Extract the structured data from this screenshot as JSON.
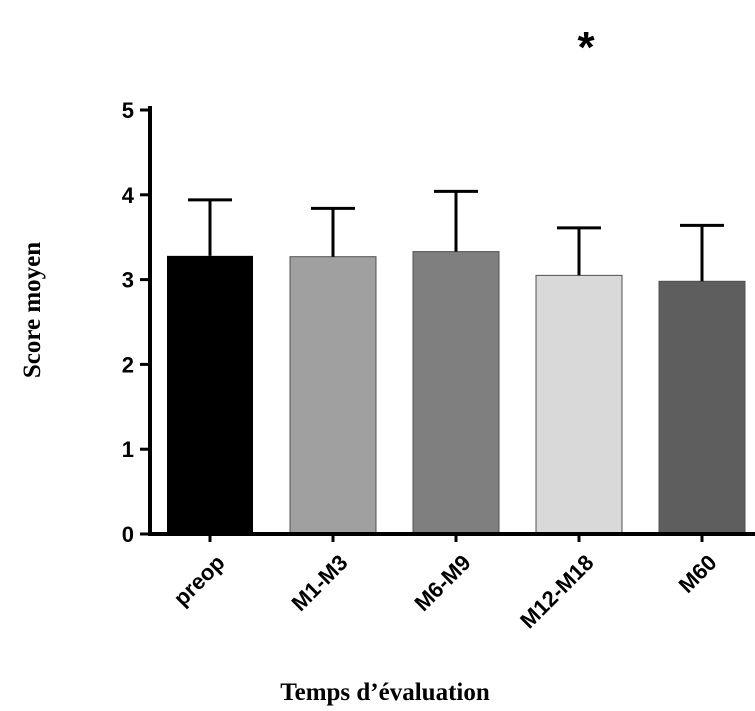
{
  "chart_data": {
    "type": "bar",
    "categories": [
      "preop",
      "M1-M3",
      "M6-M9",
      "M12-M18",
      "M60"
    ],
    "values": [
      3.28,
      3.27,
      3.33,
      3.05,
      2.98
    ],
    "errors": [
      0.66,
      0.57,
      0.71,
      0.56,
      0.66
    ],
    "bar_colors": [
      "#000000",
      "#a0a0a0",
      "#7f7f7f",
      "#d9d9d9",
      "#5e5e5e"
    ],
    "ylabel": "Score moyen",
    "xlabel": "Temps d’évaluation",
    "ylim": [
      0,
      5
    ],
    "yticks": [
      "0",
      "1",
      "2",
      "3",
      "4",
      "5"
    ],
    "annotation": "*",
    "grid": false,
    "legend": "none"
  }
}
